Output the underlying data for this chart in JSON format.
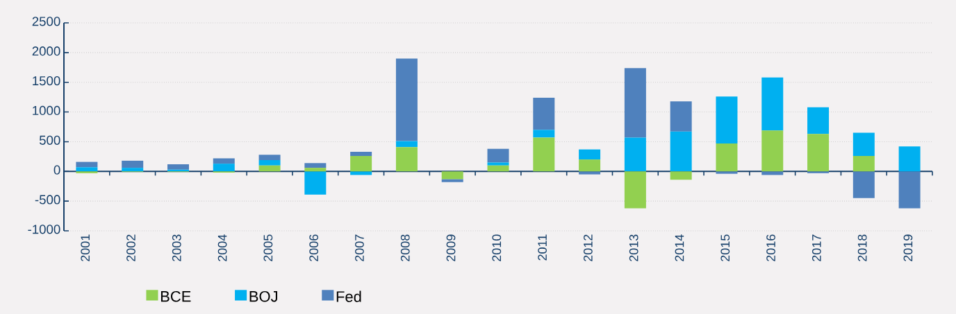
{
  "chart_data": {
    "type": "bar",
    "stacked": true,
    "categories": [
      "2001",
      "2002",
      "2003",
      "2004",
      "2005",
      "2006",
      "2007",
      "2008",
      "2009",
      "2010",
      "2011",
      "2012",
      "2013",
      "2014",
      "2015",
      "2016",
      "2017",
      "2018",
      "2019"
    ],
    "series": [
      {
        "name": "BCE",
        "color": "#92d050",
        "values": [
          -30,
          -10,
          -10,
          -20,
          100,
          60,
          260,
          410,
          -130,
          100,
          570,
          200,
          -620,
          -140,
          470,
          690,
          630,
          260,
          0
        ]
      },
      {
        "name": "BOJ",
        "color": "#00b0f0",
        "values": [
          70,
          60,
          30,
          130,
          90,
          -390,
          -60,
          100,
          0,
          50,
          130,
          170,
          570,
          670,
          790,
          890,
          450,
          390,
          420
        ]
      },
      {
        "name": "Fed",
        "color": "#4f81bd",
        "values": [
          90,
          120,
          90,
          90,
          90,
          80,
          70,
          1390,
          -50,
          230,
          540,
          -50,
          1170,
          510,
          -40,
          -60,
          -30,
          -450,
          -620
        ]
      }
    ],
    "ylim": [
      -1000,
      2500
    ],
    "yticks": [
      -1000,
      -500,
      0,
      500,
      1000,
      1500,
      2000,
      2500
    ],
    "grid": "y",
    "legend": "bottom",
    "ref_lines": [
      {
        "axis": "y",
        "value": 0,
        "color": "#17406a"
      }
    ]
  }
}
